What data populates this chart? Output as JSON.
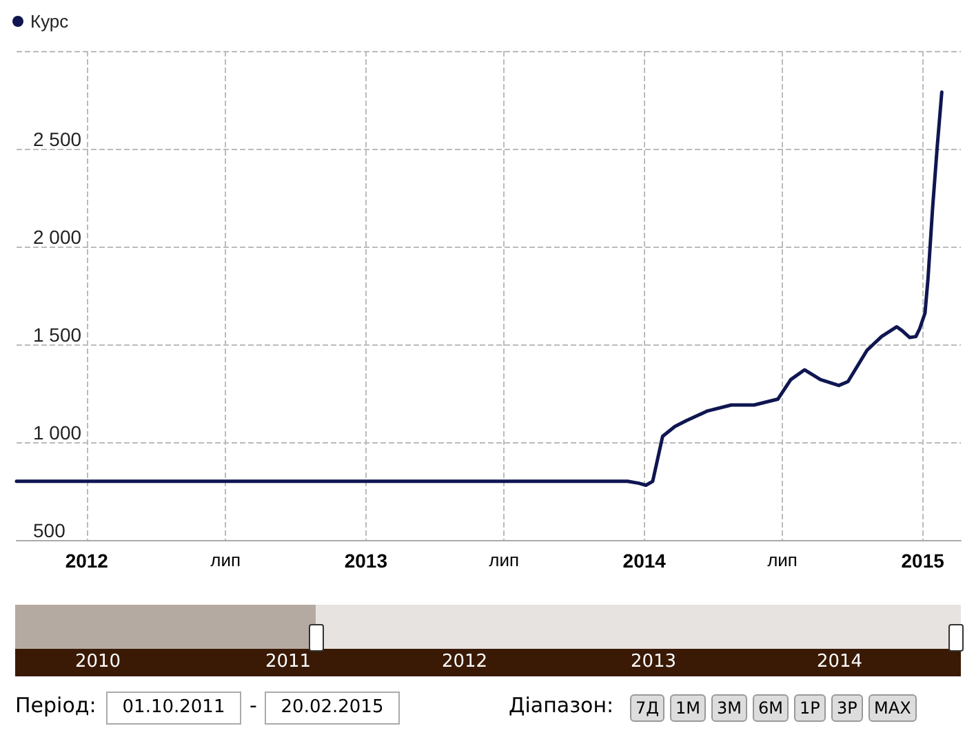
{
  "chart_data": {
    "type": "line",
    "legend": "top left",
    "grid": true,
    "marker": "none",
    "line_style": "solid",
    "xlim": [
      "2011-10-01",
      "2015-02-20"
    ],
    "xticks": [
      {
        "value": "2012-01-01",
        "label": "2012"
      },
      {
        "value": "2012-07-01",
        "label": "лип"
      },
      {
        "value": "2013-01-01",
        "label": "2013"
      },
      {
        "value": "2013-07-01",
        "label": "лип"
      },
      {
        "value": "2014-01-01",
        "label": "2014"
      },
      {
        "value": "2014-07-01",
        "label": "лип"
      },
      {
        "value": "2015-01-01",
        "label": "2015"
      }
    ],
    "ylim": [
      500,
      3000
    ],
    "yticks": [
      500,
      {
        "value": 1000,
        "label": "1 000"
      },
      {
        "value": 1500,
        "label": "1 500"
      },
      {
        "value": 2000,
        "label": "2 000"
      },
      {
        "value": 2500,
        "label": "2 500"
      },
      {
        "value": 3000,
        "label": null
      }
    ],
    "series": [
      {
        "name": "Курс",
        "color": "#0f1650",
        "x": [
          "2011-10-01",
          "2012-06-01",
          "2013-01-01",
          "2013-08-01",
          "2013-12-10",
          "2013-12-25",
          "2014-01-03",
          "2014-01-12",
          "2014-01-25",
          "2014-02-10",
          "2014-02-25",
          "2014-03-25",
          "2014-04-25",
          "2014-05-25",
          "2014-06-25",
          "2014-07-12",
          "2014-07-30",
          "2014-08-20",
          "2014-09-13",
          "2014-09-25",
          "2014-10-20",
          "2014-11-08",
          "2014-11-28",
          "2014-12-05",
          "2014-12-15",
          "2014-12-23",
          "2014-12-28",
          "2015-01-04",
          "2015-01-08",
          "2015-01-14",
          "2015-01-20",
          "2015-01-26"
        ],
        "values": [
          800,
          800,
          800,
          800,
          800,
          790,
          780,
          800,
          1030,
          1080,
          1110,
          1160,
          1190,
          1190,
          1220,
          1320,
          1370,
          1320,
          1290,
          1310,
          1470,
          1540,
          1590,
          1570,
          1535,
          1540,
          1580,
          1660,
          1840,
          2200,
          2510,
          2790
        ]
      }
    ],
    "annotations": [
      "2010",
      "2011",
      "2012",
      "2013",
      "2014",
      "Період:",
      "01.10.2011",
      "-",
      "20.02.2015",
      "Діапазон:",
      "7Д",
      "1М",
      "3М",
      "6М",
      "1Р",
      "3Р",
      "MAX"
    ]
  }
}
